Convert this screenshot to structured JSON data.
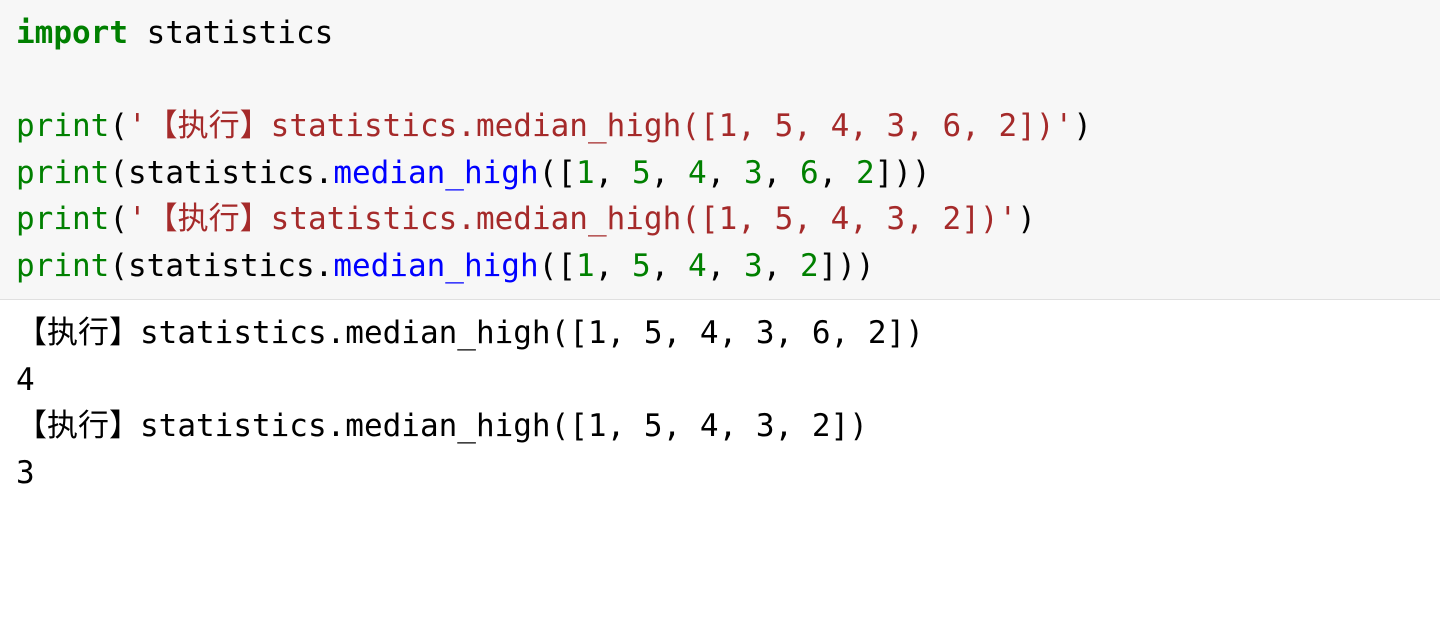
{
  "code": {
    "lines": [
      {
        "type": "import",
        "keyword": "import",
        "module": "statistics"
      },
      {
        "type": "blank"
      },
      {
        "type": "print-string",
        "func": "print",
        "string": "'【执行】statistics.median_high([1, 5, 4, 3, 6, 2])'"
      },
      {
        "type": "print-call",
        "func": "print",
        "module": "statistics",
        "method": "median_high",
        "args": [
          "1",
          "5",
          "4",
          "3",
          "6",
          "2"
        ]
      },
      {
        "type": "print-string",
        "func": "print",
        "string": "'【执行】statistics.median_high([1, 5, 4, 3, 2])'"
      },
      {
        "type": "print-call",
        "func": "print",
        "module": "statistics",
        "method": "median_high",
        "args": [
          "1",
          "5",
          "4",
          "3",
          "2"
        ]
      }
    ]
  },
  "output": {
    "lines": [
      "【执行】statistics.median_high([1, 5, 4, 3, 6, 2])",
      "4",
      "【执行】statistics.median_high([1, 5, 4, 3, 2])",
      "3"
    ]
  },
  "colors": {
    "keyword": "#008000",
    "func": "#008000",
    "method": "#0000ff",
    "string": "#a52a2a",
    "number": "#008000",
    "text": "#000000",
    "code_bg": "#f7f7f7",
    "output_bg": "#ffffff"
  }
}
